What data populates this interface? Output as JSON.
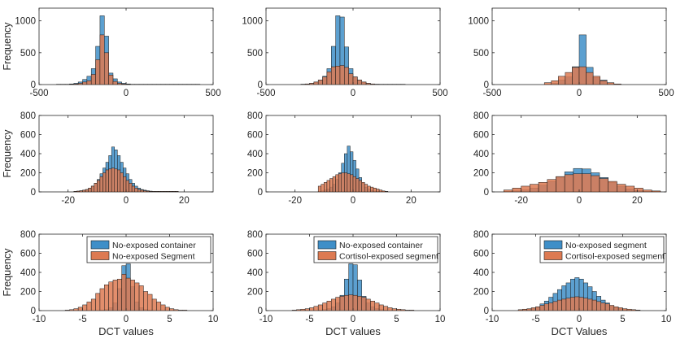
{
  "colors": {
    "blue": "#3f8fc8",
    "orange": "#dd7a52",
    "edge": "#1a1a1a",
    "axis": "#262626"
  },
  "chart_data": [
    {
      "type": "bar",
      "subtype": "histogram",
      "xlim": [
        -500,
        500
      ],
      "ylim": [
        0,
        1200
      ],
      "xticks": [
        -500,
        0,
        500
      ],
      "yticks": [
        0,
        500,
        1000
      ],
      "ylabel": "Frequency",
      "xlabel": "",
      "bin_start": -400,
      "bin_width": 25,
      "series": [
        {
          "name": "No-exposed container",
          "color": "blue",
          "values": [
            5,
            5,
            5,
            10,
            20,
            40,
            80,
            130,
            250,
            600,
            1080,
            760,
            180,
            90,
            40,
            20,
            10,
            5,
            5,
            5,
            5,
            5,
            5,
            5,
            5,
            5,
            5,
            5,
            5,
            5,
            5,
            5,
            5
          ]
        },
        {
          "name": "No-exposed Segment",
          "color": "orange",
          "values": [
            0,
            0,
            0,
            5,
            10,
            20,
            40,
            60,
            160,
            390,
            780,
            500,
            150,
            50,
            20,
            10,
            5,
            0,
            0,
            0,
            0,
            0,
            0,
            0,
            0,
            0,
            0,
            0,
            0,
            0,
            0,
            0,
            0
          ]
        }
      ],
      "legend": null
    },
    {
      "type": "bar",
      "subtype": "histogram",
      "xlim": [
        -500,
        500
      ],
      "ylim": [
        0,
        1200
      ],
      "xticks": [
        -500,
        0,
        500
      ],
      "yticks": [
        0,
        500,
        1000
      ],
      "ylabel": "",
      "xlabel": "",
      "bin_start": -300,
      "bin_width": 25,
      "series": [
        {
          "name": "No-exposed container",
          "color": "blue",
          "values": [
            5,
            10,
            20,
            40,
            70,
            130,
            250,
            600,
            1080,
            1060,
            590,
            250,
            120,
            70,
            40,
            20,
            10,
            5,
            5,
            5,
            5,
            5,
            5,
            5
          ]
        },
        {
          "name": "Cortisol-exposed segment",
          "color": "orange",
          "values": [
            5,
            10,
            20,
            40,
            70,
            120,
            200,
            280,
            290,
            300,
            270,
            170,
            120,
            70,
            40,
            20,
            10,
            5,
            0,
            0,
            0,
            0,
            0,
            0
          ]
        }
      ],
      "legend": null
    },
    {
      "type": "bar",
      "subtype": "histogram",
      "xlim": [
        -500,
        500
      ],
      "ylim": [
        0,
        1200
      ],
      "xticks": [
        -500,
        0,
        500
      ],
      "yticks": [
        0,
        500,
        1000
      ],
      "ylabel": "",
      "xlabel": "",
      "bin_start": -200,
      "bin_width": 40,
      "series": [
        {
          "name": "No-exposed segment",
          "color": "blue",
          "values": [
            5,
            20,
            70,
            120,
            280,
            780,
            270,
            110,
            70,
            20,
            5
          ]
        },
        {
          "name": "Cortisol-exposed segment",
          "color": "orange",
          "values": [
            30,
            60,
            130,
            190,
            270,
            280,
            190,
            130,
            60,
            30,
            10
          ]
        }
      ],
      "legend": null
    },
    {
      "type": "bar",
      "subtype": "histogram",
      "xlim": [
        -30,
        30
      ],
      "ylim": [
        0,
        800
      ],
      "xticks": [
        -20,
        0,
        20
      ],
      "yticks": [
        0,
        200,
        400,
        600,
        800
      ],
      "ylabel": "Frequency",
      "xlabel": "",
      "bin_start": -18,
      "bin_width": 1,
      "series": [
        {
          "name": "No-exposed container",
          "color": "blue",
          "values": [
            5,
            8,
            12,
            18,
            25,
            40,
            60,
            90,
            130,
            190,
            250,
            310,
            380,
            470,
            440,
            380,
            310,
            250,
            190,
            130,
            90,
            60,
            40,
            25,
            18,
            12,
            8,
            5,
            5,
            5,
            5,
            5,
            5,
            5,
            5,
            5
          ]
        },
        {
          "name": "No-exposed Segment",
          "color": "orange",
          "values": [
            5,
            8,
            12,
            18,
            25,
            40,
            60,
            90,
            120,
            160,
            200,
            230,
            240,
            250,
            240,
            230,
            200,
            160,
            120,
            90,
            60,
            40,
            25,
            18,
            12,
            8,
            5,
            5,
            5,
            5,
            5,
            5,
            5,
            5,
            5,
            5
          ]
        }
      ],
      "legend": null
    },
    {
      "type": "bar",
      "subtype": "histogram",
      "xlim": [
        -30,
        30
      ],
      "ylim": [
        0,
        800
      ],
      "xticks": [
        -20,
        0,
        20
      ],
      "yticks": [
        0,
        200,
        400,
        600,
        800
      ],
      "ylabel": "",
      "xlabel": "",
      "bin_start": -12,
      "bin_width": 1,
      "series": [
        {
          "name": "No-exposed container",
          "color": "blue",
          "values": [
            5,
            10,
            20,
            30,
            50,
            80,
            130,
            200,
            300,
            400,
            480,
            420,
            330,
            240,
            150,
            90,
            50,
            30,
            15,
            8,
            5,
            5,
            5,
            5
          ]
        },
        {
          "name": "Cortisol-exposed segment",
          "color": "orange",
          "values": [
            60,
            80,
            100,
            120,
            140,
            160,
            180,
            190,
            200,
            200,
            190,
            180,
            160,
            140,
            120,
            100,
            80,
            60,
            50,
            40,
            30,
            20,
            10,
            5
          ]
        }
      ],
      "legend": null
    },
    {
      "type": "bar",
      "subtype": "histogram",
      "xlim": [
        -30,
        30
      ],
      "ylim": [
        0,
        800
      ],
      "xticks": [
        -20,
        0,
        20
      ],
      "yticks": [
        0,
        200,
        400,
        600,
        800
      ],
      "ylabel": "",
      "xlabel": "",
      "bin_start": -26,
      "bin_width": 3,
      "series": [
        {
          "name": "No-exposed segment",
          "color": "blue",
          "values": [
            5,
            10,
            20,
            40,
            70,
            110,
            160,
            210,
            245,
            240,
            200,
            150,
            100,
            60,
            30,
            15,
            8,
            5
          ]
        },
        {
          "name": "Cortisol-exposed segment",
          "color": "orange",
          "values": [
            20,
            40,
            60,
            80,
            100,
            130,
            160,
            180,
            190,
            190,
            170,
            140,
            110,
            80,
            60,
            40,
            20,
            10
          ]
        }
      ],
      "legend": null
    },
    {
      "type": "bar",
      "subtype": "histogram",
      "xlim": [
        -10,
        10
      ],
      "ylim": [
        0,
        800
      ],
      "xticks": [
        -10,
        -5,
        0,
        5,
        10
      ],
      "yticks": [
        0,
        200,
        400,
        600,
        800
      ],
      "ylabel": "Frequency",
      "xlabel": "DCT values",
      "bin_start": -7,
      "bin_width": 0.5,
      "series": [
        {
          "name": "No-exposed container",
          "color": "blue",
          "values": [
            0,
            0,
            0,
            0,
            0,
            0,
            0,
            0,
            5,
            10,
            30,
            80,
            230,
            470,
            490,
            250,
            90,
            30,
            10,
            5,
            0,
            0,
            0,
            0,
            0,
            0,
            0,
            0
          ]
        },
        {
          "name": "No-exposed Segment",
          "color": "orange",
          "values": [
            5,
            10,
            20,
            35,
            60,
            90,
            120,
            180,
            230,
            270,
            300,
            320,
            330,
            380,
            340,
            320,
            290,
            260,
            200,
            170,
            120,
            90,
            60,
            35,
            20,
            10,
            5,
            5
          ]
        }
      ],
      "legend": {
        "position": "top-right",
        "entries": [
          "No-exposed container",
          "No-exposed Segment"
        ]
      }
    },
    {
      "type": "bar",
      "subtype": "histogram",
      "xlim": [
        -10,
        10
      ],
      "ylim": [
        0,
        800
      ],
      "xticks": [
        -10,
        -5,
        0,
        5,
        10
      ],
      "yticks": [
        0,
        200,
        400,
        600,
        800
      ],
      "ylabel": "",
      "xlabel": "DCT values",
      "bin_start": -7,
      "bin_width": 0.5,
      "series": [
        {
          "name": "No-exposed container",
          "color": "blue",
          "values": [
            0,
            0,
            0,
            0,
            0,
            0,
            5,
            10,
            20,
            40,
            80,
            160,
            330,
            490,
            480,
            320,
            150,
            80,
            40,
            20,
            10,
            5,
            0,
            0,
            0,
            0,
            0,
            0
          ]
        },
        {
          "name": "Cortisol-exposed segment",
          "color": "orange",
          "values": [
            5,
            10,
            15,
            20,
            30,
            45,
            60,
            80,
            100,
            120,
            140,
            150,
            160,
            165,
            160,
            150,
            140,
            120,
            100,
            80,
            60,
            45,
            30,
            20,
            15,
            10,
            5,
            5
          ]
        }
      ],
      "legend": {
        "position": "top-right",
        "entries": [
          "No-exposed container",
          "Cortisol-exposed segment"
        ]
      }
    },
    {
      "type": "bar",
      "subtype": "histogram",
      "xlim": [
        -10,
        10
      ],
      "ylim": [
        0,
        800
      ],
      "xticks": [
        -10,
        -5,
        0,
        5,
        10
      ],
      "yticks": [
        0,
        200,
        400,
        600,
        800
      ],
      "ylabel": "",
      "xlabel": "DCT Values",
      "bin_start": -7,
      "bin_width": 0.5,
      "series": [
        {
          "name": "No-exposed segment",
          "color": "blue",
          "values": [
            5,
            10,
            15,
            25,
            40,
            70,
            100,
            140,
            180,
            220,
            260,
            290,
            330,
            345,
            330,
            290,
            250,
            200,
            150,
            110,
            80,
            50,
            30,
            20,
            10,
            5,
            5,
            5
          ]
        },
        {
          "name": "Cortisol-exposed segment",
          "color": "orange",
          "values": [
            10,
            15,
            20,
            30,
            40,
            55,
            70,
            80,
            95,
            110,
            120,
            130,
            140,
            145,
            140,
            130,
            120,
            110,
            95,
            80,
            70,
            55,
            40,
            30,
            20,
            15,
            10,
            5
          ]
        }
      ],
      "legend": {
        "position": "top-right",
        "entries": [
          "No-exposed segment",
          "Cortisol-exposed segment"
        ]
      }
    }
  ]
}
